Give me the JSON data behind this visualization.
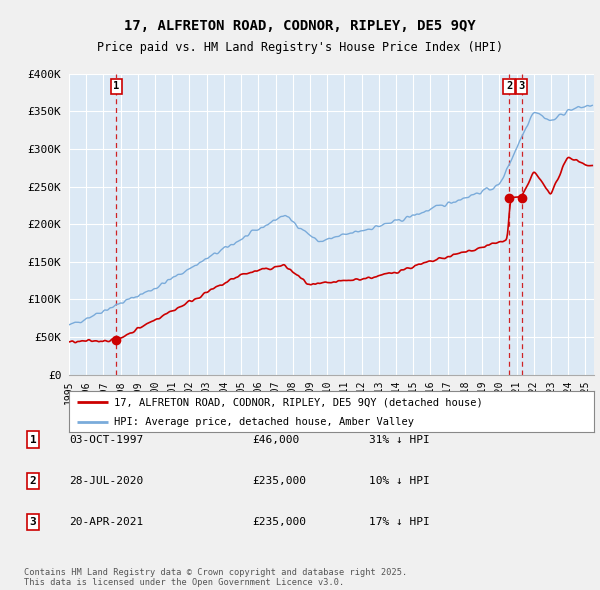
{
  "title": "17, ALFRETON ROAD, CODNOR, RIPLEY, DE5 9QY",
  "subtitle": "Price paid vs. HM Land Registry's House Price Index (HPI)",
  "ylim": [
    0,
    400000
  ],
  "yticks": [
    0,
    50000,
    100000,
    150000,
    200000,
    250000,
    300000,
    350000,
    400000
  ],
  "ytick_labels": [
    "£0",
    "£50K",
    "£100K",
    "£150K",
    "£200K",
    "£250K",
    "£300K",
    "£350K",
    "£400K"
  ],
  "xlim_start": 1995.0,
  "xlim_end": 2025.5,
  "legend_line1": "17, ALFRETON ROAD, CODNOR, RIPLEY, DE5 9QY (detached house)",
  "legend_line2": "HPI: Average price, detached house, Amber Valley",
  "sale_color": "#cc0000",
  "hpi_color": "#7aabda",
  "sale_marker_color": "#cc0000",
  "vline_color": "#cc0000",
  "plot_bg_color": "#dce9f5",
  "grid_color": "#ffffff",
  "transactions": [
    {
      "num": 1,
      "date": "03-OCT-1997",
      "price": 46000,
      "pct": "31% ↓ HPI",
      "year": 1997.75
    },
    {
      "num": 2,
      "date": "28-JUL-2020",
      "price": 235000,
      "pct": "10% ↓ HPI",
      "year": 2020.57
    },
    {
      "num": 3,
      "date": "20-APR-2021",
      "price": 235000,
      "pct": "17% ↓ HPI",
      "year": 2021.3
    }
  ],
  "footer": "Contains HM Land Registry data © Crown copyright and database right 2025.\nThis data is licensed under the Open Government Licence v3.0.",
  "background_color": "#f0f0f0"
}
